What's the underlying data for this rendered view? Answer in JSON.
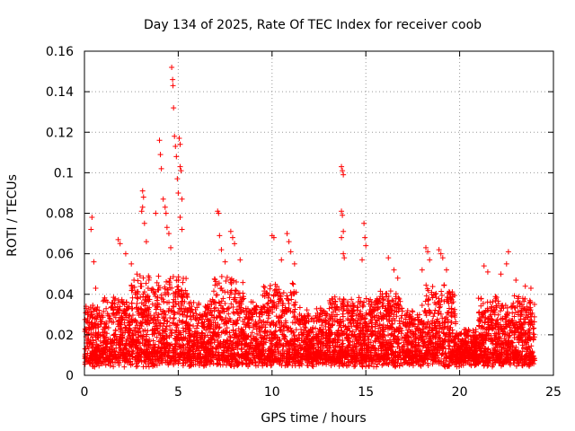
{
  "chart_data": {
    "type": "scatter",
    "title": "Day 134 of 2025, Rate Of TEC Index for receiver coob",
    "xlabel": "GPS time / hours",
    "ylabel": "ROTI / TECUs",
    "xlim": [
      0,
      25
    ],
    "ylim": [
      0,
      0.16
    ],
    "xticks": [
      0,
      5,
      10,
      15,
      20,
      25
    ],
    "xtick_labels": [
      "0",
      "5",
      "10",
      "15",
      "20",
      "25"
    ],
    "yticks": [
      0,
      0.02,
      0.04,
      0.06,
      0.08,
      0.1,
      0.12,
      0.14,
      0.16
    ],
    "ytick_labels": [
      "0",
      "0.02",
      "0.04",
      "0.06",
      "0.08",
      "0.1",
      "0.12",
      "0.14",
      "0.16"
    ],
    "grid": true,
    "marker": "+",
    "color": "#ff0000",
    "series": [
      {
        "name": "ROTI",
        "description": "dense cloud of samples across 0-24 h, mostly 0.005-0.03 TECU/min",
        "points": [
          [
            0.4,
            0.078
          ],
          [
            0.35,
            0.072
          ],
          [
            0.5,
            0.056
          ],
          [
            0.6,
            0.043
          ],
          [
            0.2,
            0.03
          ],
          [
            1.8,
            0.067
          ],
          [
            1.9,
            0.065
          ],
          [
            2.2,
            0.06
          ],
          [
            2.5,
            0.055
          ],
          [
            2.8,
            0.05
          ],
          [
            3.1,
            0.091
          ],
          [
            3.15,
            0.088
          ],
          [
            3.1,
            0.083
          ],
          [
            3.05,
            0.081
          ],
          [
            3.2,
            0.075
          ],
          [
            3.3,
            0.066
          ],
          [
            3.8,
            0.08
          ],
          [
            4.0,
            0.116
          ],
          [
            4.05,
            0.109
          ],
          [
            4.1,
            0.102
          ],
          [
            4.2,
            0.087
          ],
          [
            4.3,
            0.083
          ],
          [
            4.35,
            0.08
          ],
          [
            4.4,
            0.073
          ],
          [
            4.5,
            0.07
          ],
          [
            4.6,
            0.063
          ],
          [
            4.65,
            0.152
          ],
          [
            4.7,
            0.146
          ],
          [
            4.72,
            0.143
          ],
          [
            4.75,
            0.132
          ],
          [
            4.8,
            0.118
          ],
          [
            4.85,
            0.113
          ],
          [
            4.9,
            0.108
          ],
          [
            4.95,
            0.097
          ],
          [
            5.05,
            0.117
          ],
          [
            5.1,
            0.114
          ],
          [
            5.1,
            0.103
          ],
          [
            5.15,
            0.101
          ],
          [
            5.0,
            0.09
          ],
          [
            5.2,
            0.087
          ],
          [
            5.1,
            0.078
          ],
          [
            5.2,
            0.072
          ],
          [
            7.1,
            0.081
          ],
          [
            7.15,
            0.08
          ],
          [
            7.2,
            0.069
          ],
          [
            7.3,
            0.062
          ],
          [
            7.5,
            0.056
          ],
          [
            7.8,
            0.071
          ],
          [
            7.9,
            0.068
          ],
          [
            8.0,
            0.065
          ],
          [
            8.3,
            0.057
          ],
          [
            10.0,
            0.069
          ],
          [
            10.1,
            0.068
          ],
          [
            10.8,
            0.07
          ],
          [
            10.9,
            0.066
          ],
          [
            11.0,
            0.061
          ],
          [
            10.5,
            0.057
          ],
          [
            11.2,
            0.055
          ],
          [
            13.7,
            0.103
          ],
          [
            13.75,
            0.101
          ],
          [
            13.8,
            0.099
          ],
          [
            13.7,
            0.081
          ],
          [
            13.75,
            0.079
          ],
          [
            13.8,
            0.071
          ],
          [
            13.7,
            0.068
          ],
          [
            13.8,
            0.06
          ],
          [
            13.85,
            0.058
          ],
          [
            14.9,
            0.075
          ],
          [
            14.95,
            0.068
          ],
          [
            15.0,
            0.064
          ],
          [
            14.8,
            0.057
          ],
          [
            16.2,
            0.058
          ],
          [
            16.5,
            0.052
          ],
          [
            16.7,
            0.048
          ],
          [
            18.2,
            0.063
          ],
          [
            18.3,
            0.061
          ],
          [
            18.4,
            0.057
          ],
          [
            18.0,
            0.052
          ],
          [
            18.9,
            0.062
          ],
          [
            19.0,
            0.06
          ],
          [
            19.1,
            0.058
          ],
          [
            19.3,
            0.052
          ],
          [
            21.3,
            0.054
          ],
          [
            21.5,
            0.051
          ],
          [
            22.2,
            0.05
          ],
          [
            22.5,
            0.055
          ],
          [
            22.6,
            0.061
          ],
          [
            23.0,
            0.047
          ],
          [
            23.5,
            0.044
          ],
          [
            23.8,
            0.043
          ]
        ]
      }
    ]
  }
}
